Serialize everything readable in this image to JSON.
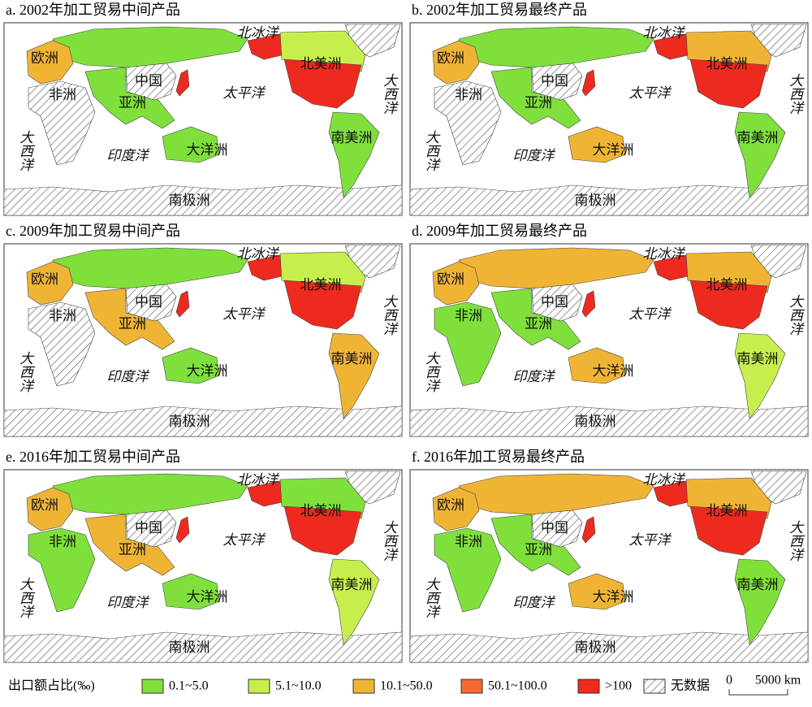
{
  "panels": [
    {
      "title": "a. 2002年加工贸易中间产品"
    },
    {
      "title": "b. 2002年加工贸易最终产品"
    },
    {
      "title": "c. 2009年加工贸易中间产品"
    },
    {
      "title": "d. 2009年加工贸易最终产品"
    },
    {
      "title": "e. 2016年加工贸易中间产品"
    },
    {
      "title": "f. 2016年加工贸易最终产品"
    }
  ],
  "map_labels": {
    "arctic": "北冰洋",
    "europe": "欧洲",
    "north_america": "北美洲",
    "atlantic": "大西洋",
    "china": "中国",
    "pacific": "太平洋",
    "africa": "非洲",
    "asia": "亚洲",
    "south_america": "南美洲",
    "indian": "印度洋",
    "oceania": "大洋洲",
    "antarctica": "南极洲"
  },
  "legend": {
    "title": "出口额占比(‰)",
    "items": [
      {
        "label": "0.1~5.0",
        "color": "#7fe03c"
      },
      {
        "label": "5.1~10.0",
        "color": "#c6ef4e"
      },
      {
        "label": "10.1~50.0",
        "color": "#f0b435"
      },
      {
        "label": "50.1~100.0",
        "color": "#f26a32"
      },
      {
        "label": ">100",
        "color": "#ee2a1e"
      },
      {
        "label": "无数据",
        "color": "hatch"
      }
    ]
  },
  "scale_bar": {
    "start": "0",
    "end": "5000 km"
  }
}
